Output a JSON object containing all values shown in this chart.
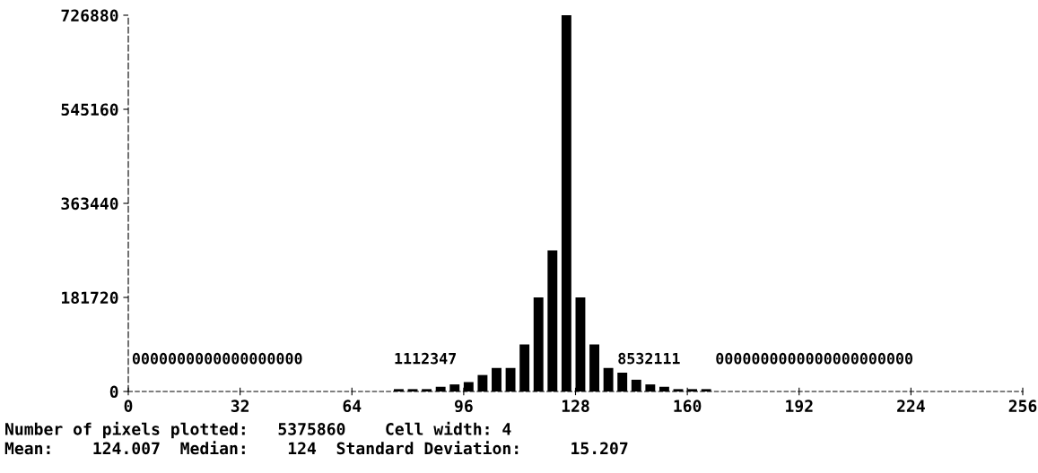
{
  "chart_data": {
    "type": "histogram",
    "bins": [
      0,
      4,
      8,
      12,
      16,
      20,
      24,
      28,
      32,
      36,
      40,
      44,
      48,
      52,
      56,
      60,
      64,
      68,
      72,
      76,
      80,
      84,
      88,
      92,
      96,
      100,
      104,
      108,
      112,
      116,
      120,
      124,
      128,
      132,
      136,
      140,
      144,
      148,
      152,
      156,
      160,
      164,
      168,
      172,
      176,
      180,
      184,
      188,
      192,
      196,
      200,
      204,
      208,
      212,
      216,
      220,
      224,
      228,
      232,
      236,
      240,
      244,
      248,
      252,
      256
    ],
    "values": [
      0,
      0,
      0,
      0,
      0,
      0,
      0,
      0,
      0,
      0,
      0,
      0,
      0,
      0,
      0,
      0,
      0,
      0,
      0,
      4543,
      4543,
      4543,
      9086,
      13629,
      18172,
      31801,
      45430,
      45430,
      90860,
      181720,
      272580,
      726880,
      181720,
      90860,
      45430,
      36344,
      22715,
      13629,
      9086,
      4543,
      4543,
      4543,
      0,
      0,
      0,
      0,
      0,
      0,
      0,
      0,
      0,
      0,
      0,
      0,
      0,
      0,
      0,
      0,
      0,
      0,
      0,
      0,
      0,
      0
    ],
    "color": "#000000",
    "xlim": [
      0,
      256
    ],
    "xticks": [
      0,
      32,
      64,
      96,
      128,
      160,
      192,
      224,
      256
    ],
    "ylim": [
      0,
      726880
    ],
    "yticks": [
      0,
      181720,
      363440,
      545160,
      726880
    ],
    "grid": false,
    "legend": false,
    "annotations": [
      "0000000000000000000",
      "1112347",
      "8532111",
      "0000000000000000000000",
      "Number of pixels plotted:   5375860    Cell width: 4",
      "Mean:    124.007  Median:    124  Standard Deviation:     15.207"
    ]
  }
}
